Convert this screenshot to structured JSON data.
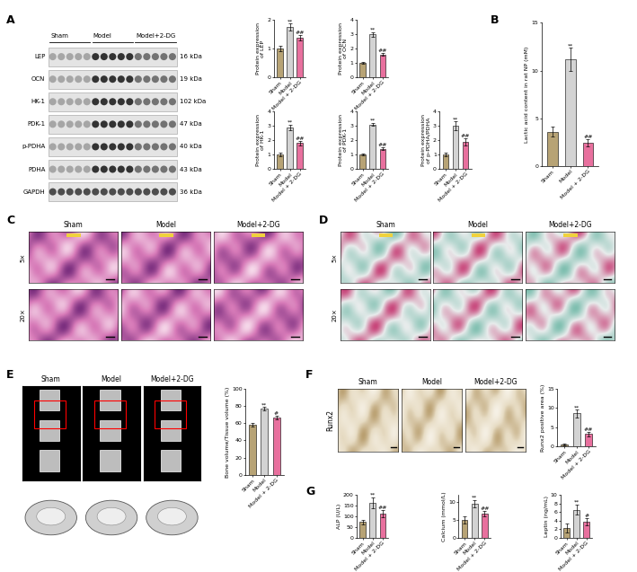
{
  "panel_labels": [
    "A",
    "B",
    "C",
    "D",
    "E",
    "F",
    "G"
  ],
  "groups": [
    "Sham",
    "Model",
    "Model+2-DG"
  ],
  "blot": {
    "proteins": [
      {
        "name": "LEP",
        "size": "16 kDa"
      },
      {
        "name": "OCN",
        "size": "19 kDa"
      },
      {
        "name": "HK-1",
        "size": "102 kDa"
      },
      {
        "name": "PDK-1",
        "size": "47 kDa"
      },
      {
        "name": "p-PDHA",
        "size": "40 kDa"
      },
      {
        "name": "PDHA",
        "size": "43 kDa"
      },
      {
        "name": "GAPDH",
        "size": "36 kDa"
      }
    ]
  },
  "histology_rows": [
    "5×",
    "20×"
  ],
  "runx2_label": "Runx2",
  "chart_data": [
    {
      "panel": "A",
      "type": "bar",
      "ylabel": "Protein expression\nof LEP",
      "categories": [
        "Sham",
        "Model",
        "Model + 2-DG"
      ],
      "values": [
        1.0,
        1.75,
        1.38
      ],
      "errors": [
        0.1,
        0.12,
        0.1
      ],
      "colors": [
        "#b7a375",
        "#d3d3d3",
        "#e8709e"
      ],
      "ylim": [
        0,
        2
      ],
      "yticks": [
        0,
        1,
        2
      ],
      "marks": [
        null,
        "**",
        "##"
      ]
    },
    {
      "panel": "A",
      "type": "bar",
      "ylabel": "Protein expression\nof OCN",
      "categories": [
        "Sham",
        "Model",
        "Model + 2-DG"
      ],
      "values": [
        1.0,
        3.0,
        1.6
      ],
      "errors": [
        0.05,
        0.15,
        0.12
      ],
      "colors": [
        "#b7a375",
        "#d3d3d3",
        "#e8709e"
      ],
      "ylim": [
        0,
        4
      ],
      "yticks": [
        0,
        1,
        2,
        3,
        4
      ],
      "marks": [
        null,
        "**",
        "##"
      ]
    },
    {
      "panel": "A",
      "type": "bar",
      "ylabel": "Protein expression\nof HK-1",
      "categories": [
        "Sham",
        "Model",
        "Model + 2-DG"
      ],
      "values": [
        1.0,
        2.9,
        1.8
      ],
      "errors": [
        0.12,
        0.2,
        0.15
      ],
      "colors": [
        "#b7a375",
        "#d3d3d3",
        "#e8709e"
      ],
      "ylim": [
        0,
        4
      ],
      "yticks": [
        0,
        1,
        2,
        3,
        4
      ],
      "marks": [
        null,
        "**",
        "##"
      ]
    },
    {
      "panel": "A",
      "type": "bar",
      "ylabel": "Protein expression\nof PDK-1",
      "categories": [
        "Sham",
        "Model",
        "Model + 2-DG"
      ],
      "values": [
        1.0,
        3.1,
        1.4
      ],
      "errors": [
        0.08,
        0.12,
        0.1
      ],
      "colors": [
        "#b7a375",
        "#d3d3d3",
        "#e8709e"
      ],
      "ylim": [
        0,
        4
      ],
      "yticks": [
        0,
        1,
        2,
        3,
        4
      ],
      "marks": [
        null,
        "**",
        "##"
      ]
    },
    {
      "panel": "A",
      "type": "bar",
      "ylabel": "Protein expression\nof p-PDHA/PDHA",
      "categories": [
        "Sham",
        "Model",
        "Model + 2-DG"
      ],
      "values": [
        1.0,
        3.0,
        1.9
      ],
      "errors": [
        0.1,
        0.3,
        0.25
      ],
      "colors": [
        "#b7a375",
        "#d3d3d3",
        "#e8709e"
      ],
      "ylim": [
        0,
        4
      ],
      "yticks": [
        0,
        1,
        2,
        3,
        4
      ],
      "marks": [
        null,
        "**",
        "##"
      ]
    },
    {
      "panel": "B",
      "type": "bar",
      "ylabel": "Lactic acid content in rat NP (mM)",
      "categories": [
        "Sham",
        "Model",
        "Model + 2-DG"
      ],
      "values": [
        3.6,
        11.2,
        2.4
      ],
      "errors": [
        0.5,
        1.2,
        0.4
      ],
      "colors": [
        "#b7a375",
        "#d3d3d3",
        "#e8709e"
      ],
      "ylim": [
        0,
        15
      ],
      "yticks": [
        0,
        5,
        10,
        15
      ],
      "marks": [
        null,
        "**",
        "##"
      ]
    },
    {
      "panel": "E",
      "type": "bar",
      "ylabel": "Bone volume/Tissue volume (%)",
      "categories": [
        "Sham",
        "Model",
        "Model + 2-DG"
      ],
      "values": [
        58,
        77,
        67
      ],
      "errors": [
        2,
        2,
        2
      ],
      "colors": [
        "#b7a375",
        "#d3d3d3",
        "#e8709e"
      ],
      "ylim": [
        0,
        100
      ],
      "yticks": [
        0,
        20,
        40,
        60,
        80,
        100
      ],
      "marks": [
        null,
        "**",
        "#"
      ]
    },
    {
      "panel": "F",
      "type": "bar",
      "ylabel": "Runx2 positive area (%)",
      "categories": [
        "Sham",
        "Model",
        "Model + 2-DG"
      ],
      "values": [
        0.4,
        8.6,
        3.2
      ],
      "errors": [
        0.2,
        1.0,
        0.6
      ],
      "colors": [
        "#b7a375",
        "#d3d3d3",
        "#e8709e"
      ],
      "ylim": [
        0,
        15
      ],
      "yticks": [
        0,
        5,
        10,
        15
      ],
      "marks": [
        null,
        "**",
        "##"
      ]
    },
    {
      "panel": "G",
      "type": "bar",
      "ylabel": "ALP (U/L)",
      "categories": [
        "Sham",
        "Model",
        "Model + 2-DG"
      ],
      "values": [
        73,
        163,
        112
      ],
      "errors": [
        10,
        25,
        15
      ],
      "colors": [
        "#b7a375",
        "#d3d3d3",
        "#e8709e"
      ],
      "ylim": [
        0,
        200
      ],
      "yticks": [
        0,
        50,
        100,
        150,
        200
      ],
      "marks": [
        null,
        "**",
        "##"
      ]
    },
    {
      "panel": "G",
      "type": "bar",
      "ylabel": "Calcium (mmol/L)",
      "categories": [
        "Sham",
        "Model",
        "Model + 2-DG"
      ],
      "values": [
        5.0,
        9.6,
        6.8
      ],
      "errors": [
        1.0,
        1.0,
        0.8
      ],
      "colors": [
        "#b7a375",
        "#d3d3d3",
        "#e8709e"
      ],
      "ylim": [
        0,
        12
      ],
      "yticks": [
        0,
        5,
        10
      ],
      "marks": [
        null,
        "**",
        "##"
      ]
    },
    {
      "panel": "G",
      "type": "bar",
      "ylabel": "Leptin (ng/mL)",
      "categories": [
        "Sham",
        "Model",
        "Model + 2-DG"
      ],
      "values": [
        2.2,
        6.5,
        3.7
      ],
      "errors": [
        1.0,
        1.2,
        0.8
      ],
      "colors": [
        "#b7a375",
        "#d3d3d3",
        "#e8709e"
      ],
      "ylim": [
        0,
        10
      ],
      "yticks": [
        0,
        2,
        4,
        6,
        8,
        10
      ],
      "marks": [
        null,
        "**",
        "#"
      ]
    }
  ]
}
